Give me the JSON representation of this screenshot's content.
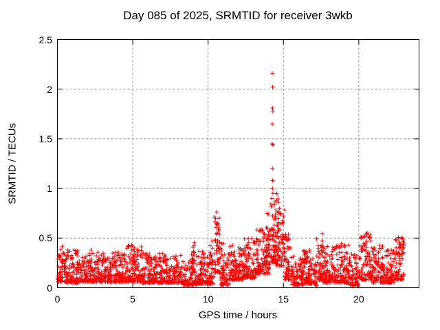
{
  "window": {
    "background": "#ffffff"
  },
  "chart_data": {
    "type": "scatter",
    "title": "Day 085 of 2025, SRMTID for receiver 3wkb",
    "xlabel": "GPS time / hours",
    "ylabel": "SRMTID / TECUs",
    "xlim": [
      0,
      24
    ],
    "ylim": [
      0,
      2.5
    ],
    "xticks": [
      [
        0,
        "0"
      ],
      [
        5,
        "5"
      ],
      [
        10,
        "10"
      ],
      [
        15,
        "15"
      ],
      [
        20,
        "20"
      ]
    ],
    "yticks": [
      [
        0,
        "0"
      ],
      [
        0.5,
        "0.5"
      ],
      [
        1,
        "1"
      ],
      [
        1.5,
        "1.5"
      ],
      [
        2,
        "2"
      ],
      [
        2.5,
        "2.5"
      ]
    ],
    "grid": true,
    "legend": "none",
    "marker": "plus",
    "marker_size_px": 7,
    "colors": {
      "points": "#ff0000",
      "frame": "#000000",
      "grid": "#8c8c8c",
      "text": "#000000"
    },
    "x_data_range": [
      0,
      23.0
    ],
    "description": "Dense scatter band ~0.05-0.4 TECUs all day; bump to ~0.8 near 10.5h; large isolated spike to 2.16 at ~14.3h; elevated cluster 0.3-0.95 from 14-15h; dips near 0 around 17.1h and 19.9h; clusters to ~0.55 near 17.3h, 20.5h and 22.7h; data ends ~23h",
    "seed": 85,
    "scatter_bands": [
      [
        0.0,
        0.5,
        0.06,
        0.42,
        2.2,
        55
      ],
      [
        0.5,
        1.5,
        0.05,
        0.4,
        2.4,
        115
      ],
      [
        1.5,
        3.0,
        0.06,
        0.38,
        2.4,
        165
      ],
      [
        3.0,
        4.5,
        0.06,
        0.36,
        2.4,
        165
      ],
      [
        4.5,
        5.6,
        0.06,
        0.43,
        2.3,
        125
      ],
      [
        5.6,
        7.0,
        0.05,
        0.36,
        2.4,
        155
      ],
      [
        7.0,
        8.3,
        0.05,
        0.33,
        2.4,
        140
      ],
      [
        8.3,
        9.2,
        0.03,
        0.3,
        2.3,
        95
      ],
      [
        8.9,
        9.15,
        0.18,
        0.47,
        1.6,
        14
      ],
      [
        9.2,
        10.35,
        0.04,
        0.37,
        2.2,
        125
      ],
      [
        10.1,
        10.32,
        0.18,
        0.5,
        1.6,
        12
      ],
      [
        10.4,
        10.8,
        0.15,
        0.8,
        2.0,
        55
      ],
      [
        10.8,
        11.4,
        0.03,
        0.46,
        2.3,
        70
      ],
      [
        11.4,
        12.3,
        0.08,
        0.43,
        2.2,
        100
      ],
      [
        12.3,
        13.2,
        0.1,
        0.5,
        2.1,
        100
      ],
      [
        13.2,
        14.1,
        0.14,
        0.62,
        1.9,
        110
      ],
      [
        13.85,
        14.05,
        0.3,
        0.75,
        1.5,
        14
      ],
      [
        14.15,
        14.5,
        0.25,
        0.88,
        1.6,
        50
      ],
      [
        14.45,
        15.1,
        0.22,
        0.8,
        1.8,
        80
      ],
      [
        14.55,
        14.8,
        0.5,
        0.97,
        1.4,
        10
      ],
      [
        15.1,
        15.5,
        0.08,
        0.55,
        2.0,
        45
      ],
      [
        15.5,
        16.3,
        0.03,
        0.32,
        2.2,
        90
      ],
      [
        16.3,
        17.1,
        0.04,
        0.38,
        2.2,
        90
      ],
      [
        17.08,
        17.22,
        0.02,
        0.25,
        1.6,
        12
      ],
      [
        17.2,
        17.6,
        0.08,
        0.56,
        1.9,
        48
      ],
      [
        17.6,
        18.6,
        0.05,
        0.43,
        2.2,
        110
      ],
      [
        18.6,
        19.4,
        0.05,
        0.45,
        2.2,
        90
      ],
      [
        19.4,
        19.97,
        0.02,
        0.36,
        2.1,
        60
      ],
      [
        20.0,
        20.85,
        0.08,
        0.58,
        2.0,
        100
      ],
      [
        20.85,
        21.6,
        0.05,
        0.45,
        2.2,
        85
      ],
      [
        21.6,
        22.35,
        0.05,
        0.4,
        2.2,
        85
      ],
      [
        22.35,
        23.0,
        0.08,
        0.52,
        1.9,
        80
      ]
    ],
    "outlier_points": [
      [
        14.26,
        2.16
      ],
      [
        14.28,
        2.02
      ],
      [
        14.27,
        1.81
      ],
      [
        14.29,
        1.78
      ],
      [
        14.26,
        1.65
      ],
      [
        14.25,
        1.45
      ],
      [
        14.3,
        1.44
      ],
      [
        14.27,
        1.2
      ],
      [
        14.28,
        1.08
      ],
      [
        14.27,
        1.0
      ],
      [
        14.3,
        0.95
      ],
      [
        14.24,
        0.9
      ]
    ]
  }
}
